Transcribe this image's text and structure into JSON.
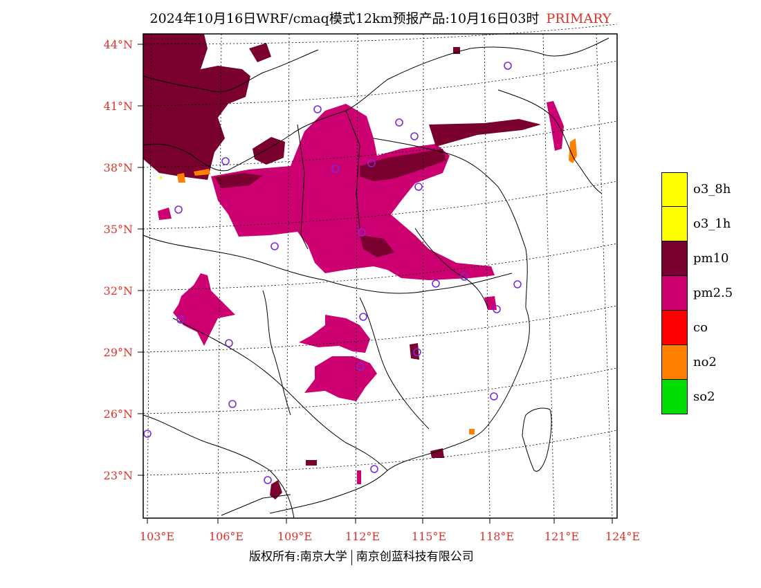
{
  "header": {
    "title": "2024年10月16日WRF/cmaq模式12km预报产品:10月16日03时",
    "tag": "PRIMARY"
  },
  "axes": {
    "lat_labels": [
      "44°N",
      "41°N",
      "38°N",
      "35°N",
      "32°N",
      "29°N",
      "26°N",
      "23°N"
    ],
    "lon_labels": [
      "103°E",
      "106°E",
      "109°E",
      "112°E",
      "115°E",
      "118°E",
      "121°E",
      "124°E"
    ],
    "label_color": "#e0302a"
  },
  "legend": {
    "items": [
      {
        "label": "o3_8h",
        "color": "#ffff00"
      },
      {
        "label": "o3_1h",
        "color": "#ffff00"
      },
      {
        "label": "pm10",
        "color": "#7a0030"
      },
      {
        "label": "pm2.5",
        "color": "#cc0070"
      },
      {
        "label": "co",
        "color": "#ff0000"
      },
      {
        "label": "no2",
        "color": "#ff7f00"
      },
      {
        "label": "so2",
        "color": "#00dd00"
      }
    ]
  },
  "map_colors": {
    "pm10": "#7a0030",
    "pm25": "#cc0070",
    "no2": "#ff7f00",
    "yellow": "#ffff00",
    "station_marker": "#7a2bd6"
  },
  "footer": {
    "left": "版权所有:南京大学",
    "right": "南京创蓝科技有限公司"
  }
}
